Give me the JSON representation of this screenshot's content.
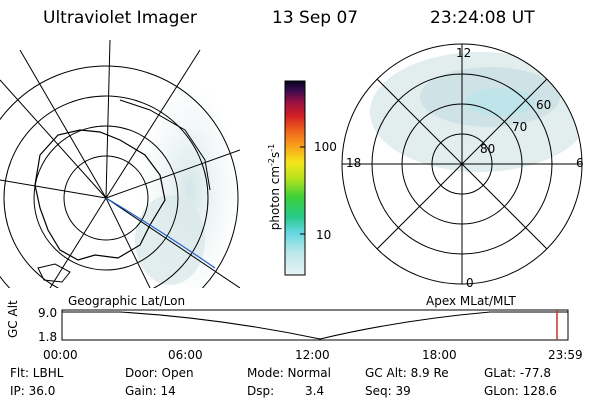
{
  "header": {
    "instrument": "Ultraviolet Imager",
    "date": "13 Sep 07",
    "time": "23:24:08 UT"
  },
  "colorbar": {
    "unit": "photon cm",
    "unit_sup1": "-2",
    "unit_mid": "s",
    "unit_sup2": "-1",
    "ticks": [
      "100",
      "10"
    ]
  },
  "polar_plot": {
    "mlt_labels": {
      "top": "12",
      "left": "18",
      "right": "6",
      "bottom": "0"
    },
    "lat_labels": [
      "60",
      "70",
      "80"
    ]
  },
  "panel_labels": {
    "left": "Geographic Lat/Lon",
    "right": "Apex MLat/MLT"
  },
  "timeline": {
    "axis_title": "GC Alt",
    "ytick_top": "9.0",
    "ytick_bottom": "1.8",
    "xticks": [
      "00:00",
      "06:00",
      "12:00",
      "18:00",
      "23:59"
    ],
    "current_marker_color": "#c0392b"
  },
  "status": [
    {
      "label": "Flt: LBHL",
      "value": ""
    },
    {
      "label": "IP: 36.0",
      "value": ""
    },
    {
      "label": "Door: Open",
      "value": ""
    },
    {
      "label": "Gain: 14",
      "value": ""
    },
    {
      "label": "Mode: Normal",
      "value": ""
    },
    {
      "label": "Dsp:",
      "value": "3.4"
    },
    {
      "label": "GC Alt: 8.9 Re",
      "value": ""
    },
    {
      "label": "Seq: 39",
      "value": ""
    },
    {
      "label": "GLat: -77.8",
      "value": ""
    },
    {
      "label": "GLon: 128.6",
      "value": ""
    }
  ]
}
